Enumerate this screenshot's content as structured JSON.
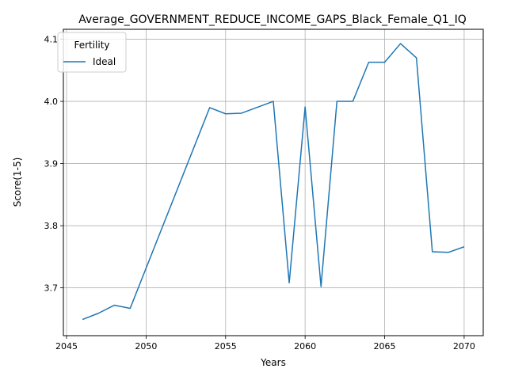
{
  "chart_data": {
    "type": "line",
    "title": "Average_GOVERNMENT_REDUCE_INCOME_GAPS_Black_Female_Q1_IQ",
    "xlabel": "Years",
    "ylabel": "Score(1-5)",
    "xlim": [
      2044.8,
      2071.2
    ],
    "ylim": [
      3.623,
      4.116
    ],
    "xticks": [
      2045,
      2050,
      2055,
      2060,
      2065,
      2070
    ],
    "yticks": [
      3.7,
      3.8,
      3.9,
      4.0,
      4.1
    ],
    "xtick_labels": [
      "2045",
      "2050",
      "2055",
      "2060",
      "2065",
      "2070"
    ],
    "ytick_labels": [
      "3.7",
      "3.8",
      "3.9",
      "4.0",
      "4.1"
    ],
    "grid": true,
    "legend": {
      "title": "Fertility",
      "position": "top-left"
    },
    "series": [
      {
        "name": "Ideal",
        "color": "#1f77b4",
        "x": [
          2046,
          2047,
          2048,
          2049,
          2054,
          2055,
          2056,
          2058,
          2059,
          2060,
          2061,
          2062,
          2063,
          2064,
          2065,
          2066,
          2067,
          2068,
          2069,
          2070
        ],
        "y": [
          3.649,
          3.659,
          3.672,
          3.667,
          3.99,
          3.98,
          3.981,
          4.0,
          3.708,
          3.991,
          3.702,
          4.0,
          4.0,
          4.063,
          4.063,
          4.093,
          4.07,
          3.758,
          3.757,
          3.766
        ]
      }
    ]
  }
}
